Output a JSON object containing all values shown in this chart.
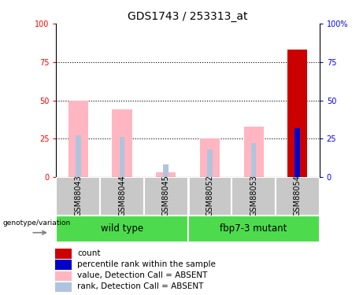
{
  "title": "GDS1743 / 253313_at",
  "samples": [
    "GSM88043",
    "GSM88044",
    "GSM88045",
    "GSM88052",
    "GSM88053",
    "GSM88054"
  ],
  "value_bars": [
    50,
    44,
    3,
    25,
    33,
    83
  ],
  "rank_bars": [
    27,
    26,
    8,
    18,
    22,
    32
  ],
  "absent_value": [
    true,
    true,
    true,
    true,
    true,
    false
  ],
  "absent_rank": [
    true,
    true,
    true,
    true,
    true,
    false
  ],
  "ylim": [
    0,
    100
  ],
  "yticks_left": [
    0,
    25,
    50,
    75,
    100
  ],
  "yticks_right_labels": [
    "0",
    "25",
    "50",
    "75",
    "100%"
  ],
  "value_bar_width": 0.45,
  "rank_bar_width": 0.12,
  "value_color_absent": "#FFB6C1",
  "rank_color_absent": "#B0C4DE",
  "count_color": "#CC0000",
  "percentile_color": "#0000CC",
  "group_color": "#4DDB4D",
  "label_area_color": "#C8C8C8",
  "wild_type_label": "wild type",
  "mutant_label": "fbp7-3 mutant",
  "genotype_label": "genotype/variation",
  "legend_items": [
    {
      "color": "#CC0000",
      "label": "count"
    },
    {
      "color": "#0000CC",
      "label": "percentile rank within the sample"
    },
    {
      "color": "#FFB6C1",
      "label": "value, Detection Call = ABSENT"
    },
    {
      "color": "#B0C4DE",
      "label": "rank, Detection Call = ABSENT"
    }
  ]
}
